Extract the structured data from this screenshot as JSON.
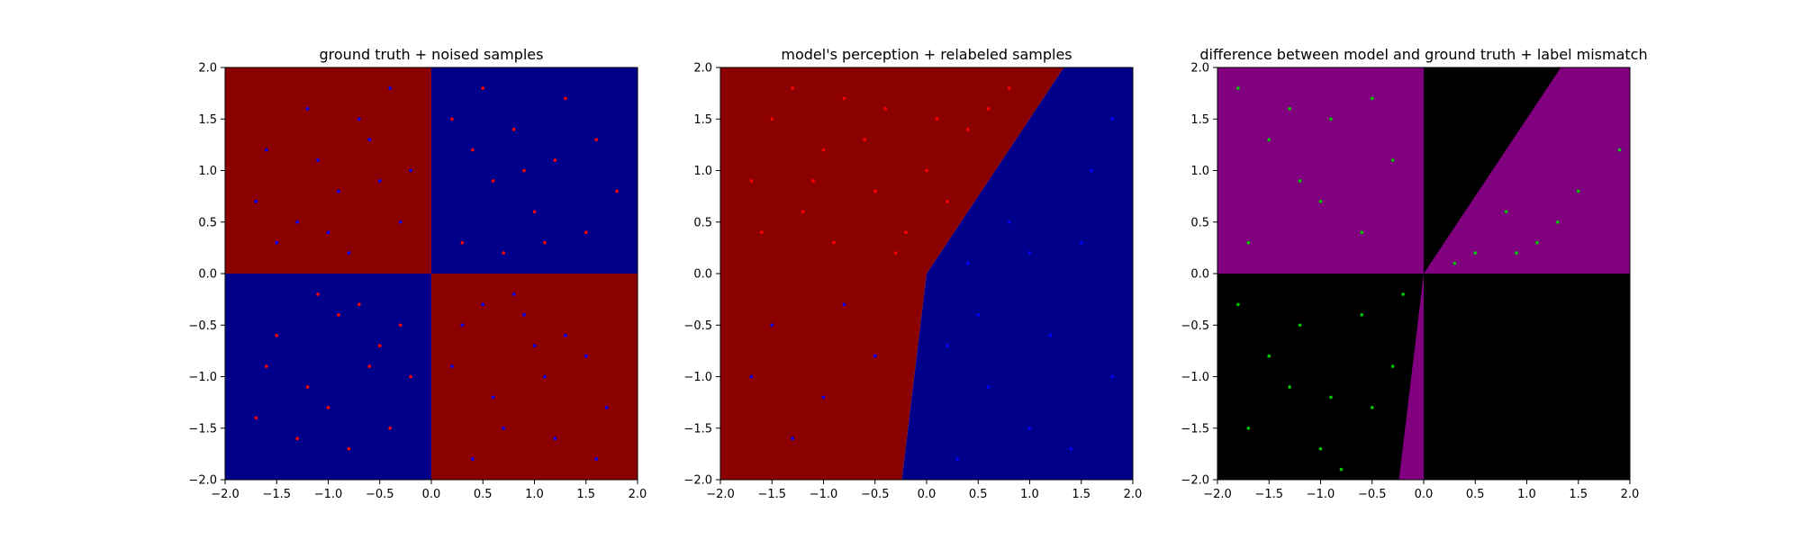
{
  "chart_data": [
    {
      "type": "scatter",
      "title": "ground truth + noised samples",
      "xlabel": "",
      "ylabel": "",
      "xlim": [
        -2.0,
        2.0
      ],
      "ylim": [
        -2.0,
        2.0
      ],
      "xticks": [
        "−2.0",
        "−1.5",
        "−1.0",
        "−0.5",
        "0.0",
        "0.5",
        "1.0",
        "1.5",
        "2.0"
      ],
      "yticks": [
        "−2.0",
        "−1.5",
        "−1.0",
        "−0.5",
        "0.0",
        "0.5",
        "1.0",
        "1.5",
        "2.0"
      ],
      "grid": false,
      "background_regions": [
        {
          "polygon": [
            [
              -2,
              0
            ],
            [
              0,
              0
            ],
            [
              0,
              2
            ],
            [
              -2,
              2
            ]
          ],
          "color": "#8b0000"
        },
        {
          "polygon": [
            [
              0,
              0
            ],
            [
              2,
              0
            ],
            [
              2,
              2
            ],
            [
              0,
              2
            ]
          ],
          "color": "#00008b"
        },
        {
          "polygon": [
            [
              -2,
              -2
            ],
            [
              0,
              -2
            ],
            [
              0,
              0
            ],
            [
              -2,
              0
            ]
          ],
          "color": "#00008b"
        },
        {
          "polygon": [
            [
              0,
              -2
            ],
            [
              2,
              -2
            ],
            [
              2,
              0
            ],
            [
              0,
              0
            ]
          ],
          "color": "#8b0000"
        }
      ],
      "series": [
        {
          "color": "#ff0000",
          "values": [
            [
              0.2,
              1.5
            ],
            [
              0.4,
              1.2
            ],
            [
              0.6,
              0.9
            ],
            [
              0.8,
              1.4
            ],
            [
              1.0,
              0.6
            ],
            [
              1.2,
              1.1
            ],
            [
              1.5,
              0.4
            ],
            [
              0.3,
              0.3
            ],
            [
              0.7,
              0.2
            ],
            [
              1.3,
              1.7
            ],
            [
              1.8,
              0.8
            ],
            [
              0.5,
              1.8
            ],
            [
              1.1,
              0.3
            ],
            [
              0.9,
              1.0
            ],
            [
              1.6,
              1.3
            ],
            [
              -0.3,
              -0.5
            ],
            [
              -0.6,
              -0.9
            ],
            [
              -0.9,
              -0.4
            ],
            [
              -1.2,
              -1.1
            ],
            [
              -1.5,
              -0.6
            ],
            [
              -0.4,
              -1.5
            ],
            [
              -0.8,
              -1.7
            ],
            [
              -1.1,
              -0.2
            ],
            [
              -1.7,
              -1.4
            ],
            [
              -0.2,
              -1.0
            ],
            [
              -1.3,
              -1.6
            ],
            [
              -0.7,
              -0.3
            ],
            [
              -1.0,
              -1.3
            ],
            [
              -0.5,
              -0.7
            ],
            [
              -1.6,
              -0.9
            ]
          ]
        },
        {
          "color": "#0000ff",
          "values": [
            [
              -0.3,
              0.5
            ],
            [
              -0.6,
              1.3
            ],
            [
              -0.9,
              0.8
            ],
            [
              -1.2,
              1.6
            ],
            [
              -1.5,
              0.3
            ],
            [
              -0.4,
              1.8
            ],
            [
              -0.8,
              0.2
            ],
            [
              -1.1,
              1.1
            ],
            [
              -1.7,
              0.7
            ],
            [
              -0.2,
              1.0
            ],
            [
              -1.3,
              0.5
            ],
            [
              -0.7,
              1.5
            ],
            [
              -1.0,
              0.4
            ],
            [
              -0.5,
              0.9
            ],
            [
              -1.6,
              1.2
            ],
            [
              0.3,
              -0.5
            ],
            [
              0.6,
              -1.2
            ],
            [
              0.9,
              -0.4
            ],
            [
              1.2,
              -1.6
            ],
            [
              1.5,
              -0.8
            ],
            [
              0.4,
              -1.8
            ],
            [
              0.8,
              -0.2
            ],
            [
              1.1,
              -1.0
            ],
            [
              1.7,
              -1.3
            ],
            [
              0.2,
              -0.9
            ],
            [
              1.3,
              -0.6
            ],
            [
              0.7,
              -1.5
            ],
            [
              1.0,
              -0.7
            ],
            [
              0.5,
              -0.3
            ],
            [
              1.6,
              -1.8
            ]
          ]
        }
      ]
    },
    {
      "type": "scatter",
      "title": "model's perception + relabeled samples",
      "xlabel": "",
      "ylabel": "",
      "xlim": [
        -2.0,
        2.0
      ],
      "ylim": [
        -2.0,
        2.0
      ],
      "xticks": [
        "−2.0",
        "−1.5",
        "−1.0",
        "−0.5",
        "0.0",
        "0.5",
        "1.0",
        "1.5",
        "2.0"
      ],
      "yticks": [
        "−2.0",
        "−1.5",
        "−1.0",
        "−0.5",
        "0.0",
        "0.5",
        "1.0",
        "1.5",
        "2.0"
      ],
      "grid": false,
      "background_regions": [
        {
          "polygon": [
            [
              -2,
              -2
            ],
            [
              -0.24,
              -2
            ],
            [
              0,
              0
            ],
            [
              1.33,
              2
            ],
            [
              -2,
              2
            ]
          ],
          "color": "#8b0000"
        },
        {
          "polygon": [
            [
              -0.24,
              -2
            ],
            [
              2,
              -2
            ],
            [
              2,
              2
            ],
            [
              1.33,
              2
            ],
            [
              0,
              0
            ]
          ],
          "color": "#00008b"
        }
      ],
      "series": [
        {
          "color": "#ff0000",
          "values": [
            [
              -1.5,
              1.5
            ],
            [
              -1.0,
              1.2
            ],
            [
              -0.5,
              0.8
            ],
            [
              0.0,
              1.0
            ],
            [
              0.4,
              1.4
            ],
            [
              -1.2,
              0.6
            ],
            [
              -0.8,
              1.7
            ],
            [
              -0.2,
              0.4
            ],
            [
              0.6,
              1.6
            ],
            [
              -1.7,
              0.9
            ],
            [
              -0.6,
              1.3
            ],
            [
              0.2,
              0.7
            ],
            [
              -1.3,
              1.8
            ],
            [
              -0.9,
              0.3
            ],
            [
              0.8,
              1.8
            ],
            [
              -0.4,
              1.6
            ],
            [
              -1.6,
              0.4
            ],
            [
              0.1,
              1.5
            ],
            [
              -1.1,
              0.9
            ],
            [
              -0.3,
              0.2
            ]
          ]
        },
        {
          "color": "#0000ff",
          "values": [
            [
              -1.5,
              -0.5
            ],
            [
              -1.0,
              -1.2
            ],
            [
              -0.5,
              -0.8
            ],
            [
              0.5,
              -0.4
            ],
            [
              1.0,
              -1.5
            ],
            [
              1.5,
              0.3
            ],
            [
              1.8,
              -1.0
            ],
            [
              0.8,
              0.5
            ],
            [
              1.2,
              -0.6
            ],
            [
              0.3,
              -1.8
            ],
            [
              -1.3,
              -1.6
            ],
            [
              -0.8,
              -0.3
            ],
            [
              1.6,
              1.0
            ],
            [
              0.6,
              -1.1
            ],
            [
              1.4,
              -1.7
            ],
            [
              0.4,
              0.1
            ],
            [
              -1.7,
              -1.0
            ],
            [
              1.0,
              0.2
            ],
            [
              0.2,
              -0.7
            ],
            [
              1.8,
              1.5
            ]
          ]
        }
      ]
    },
    {
      "type": "scatter",
      "title": "difference between model and ground truth + label mismatch",
      "xlabel": "",
      "ylabel": "",
      "xlim": [
        -2.0,
        2.0
      ],
      "ylim": [
        -2.0,
        2.0
      ],
      "xticks": [
        "−2.0",
        "−1.5",
        "−1.0",
        "−0.5",
        "0.0",
        "0.5",
        "1.0",
        "1.5",
        "2.0"
      ],
      "yticks": [
        "−2.0",
        "−1.5",
        "−1.0",
        "−0.5",
        "0.0",
        "0.5",
        "1.0",
        "1.5",
        "2.0"
      ],
      "grid": false,
      "background_regions": [
        {
          "polygon": [
            [
              -2,
              -2
            ],
            [
              2,
              -2
            ],
            [
              2,
              2
            ],
            [
              -2,
              2
            ]
          ],
          "color": "#000000"
        },
        {
          "polygon": [
            [
              -2,
              0
            ],
            [
              0,
              0
            ],
            [
              0,
              2
            ],
            [
              -2,
              2
            ]
          ],
          "color": "#800080"
        },
        {
          "polygon": [
            [
              0,
              0
            ],
            [
              2,
              0
            ],
            [
              2,
              2
            ],
            [
              1.33,
              2
            ]
          ],
          "color": "#800080"
        },
        {
          "polygon": [
            [
              -0.24,
              -2
            ],
            [
              0,
              -2
            ],
            [
              0,
              0
            ]
          ],
          "color": "#800080"
        }
      ],
      "series": [
        {
          "color": "#00c800",
          "values": [
            [
              -1.8,
              1.8
            ],
            [
              -1.5,
              1.3
            ],
            [
              -1.2,
              0.9
            ],
            [
              -0.9,
              1.5
            ],
            [
              -0.6,
              0.4
            ],
            [
              -0.3,
              1.1
            ],
            [
              -1.7,
              0.3
            ],
            [
              -1.0,
              0.7
            ],
            [
              -0.5,
              1.7
            ],
            [
              -1.3,
              1.6
            ],
            [
              0.5,
              0.2
            ],
            [
              0.8,
              0.6
            ],
            [
              1.1,
              0.3
            ],
            [
              1.5,
              0.8
            ],
            [
              1.9,
              1.2
            ],
            [
              0.3,
              0.1
            ],
            [
              1.3,
              0.5
            ],
            [
              0.9,
              0.2
            ],
            [
              -1.8,
              -0.3
            ],
            [
              -1.5,
              -0.8
            ],
            [
              -1.2,
              -0.5
            ],
            [
              -0.9,
              -1.2
            ],
            [
              -0.6,
              -0.4
            ],
            [
              -0.3,
              -0.9
            ],
            [
              -1.7,
              -1.5
            ],
            [
              -1.0,
              -1.7
            ],
            [
              -0.5,
              -1.3
            ],
            [
              -1.3,
              -1.1
            ],
            [
              -0.8,
              -1.9
            ],
            [
              -0.2,
              -0.2
            ]
          ]
        }
      ]
    }
  ]
}
